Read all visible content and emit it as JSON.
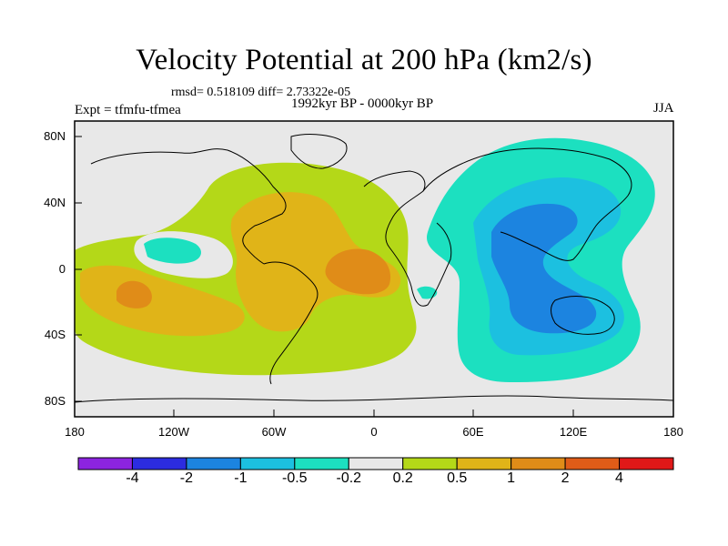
{
  "title": "Velocity Potential at 200 hPa (km2/s)",
  "stats_line": "rmsd= 0.518109 diff= 2.73322e-05",
  "experiment": "Expt = tfmfu-tfmea",
  "period": "1992kyr BP - 0000kyr BP",
  "season": "JJA",
  "lat_ticks": [
    "80N",
    "40N",
    "0",
    "40S",
    "80S"
  ],
  "lon_ticks": [
    "180",
    "120W",
    "60W",
    "0",
    "60E",
    "120E",
    "180"
  ],
  "colorbar": {
    "colors": [
      "#8c24e0",
      "#2c2ce0",
      "#1c84e0",
      "#1cc0e0",
      "#1ce0c0",
      "#e8e8e8",
      "#b4d818",
      "#e0b418",
      "#e08c18",
      "#e05c18",
      "#e01818"
    ],
    "labels": [
      "-4",
      "-2",
      "-1",
      "-0.5",
      "-0.2",
      "0.2",
      "0.5",
      "1",
      "2",
      "4"
    ]
  },
  "legend_colors": {
    "neutral": "#e8e8e8",
    "pos_weak": "#b4d818",
    "pos_mid": "#e0b418",
    "pos_strong": "#e08c18",
    "neg_weak": "#1ce0c0",
    "neg_mid": "#1cc0e0",
    "neg_strong": "#1c84e0"
  }
}
